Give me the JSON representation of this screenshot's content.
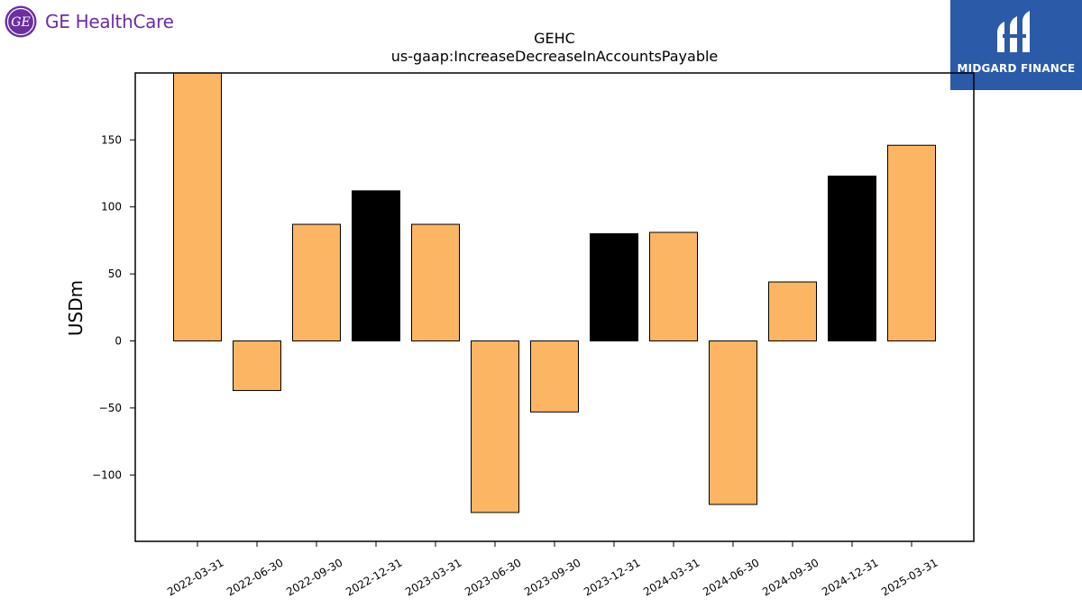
{
  "brand": {
    "left_logo_text": "GE HealthCare",
    "left_logo_mark": "GE",
    "right_logo_text": "MIDGARD FINANCE",
    "colors": {
      "ge_purple": "#6b2fa0",
      "midgard_blue": "#2a5aa8"
    }
  },
  "chart_data": {
    "type": "bar",
    "title": "GEHC",
    "subtitle": "us-gaap:IncreaseDecreaseInAccountsPayable",
    "xlabel": "",
    "ylabel": "USDm",
    "ylim": [
      -150,
      200
    ],
    "yticks": [
      -100,
      -50,
      0,
      50,
      100,
      150
    ],
    "ytick_labels": [
      "−100",
      "−50",
      "0",
      "50",
      "100",
      "150"
    ],
    "grid": false,
    "categories": [
      "2022-03-31",
      "2022-06-30",
      "2022-09-30",
      "2022-12-31",
      "2023-03-31",
      "2023-06-30",
      "2023-09-30",
      "2023-12-31",
      "2024-03-31",
      "2024-06-30",
      "2024-09-30",
      "2024-12-31",
      "2025-03-31"
    ],
    "values": [
      200,
      -37,
      87,
      112,
      87,
      -128,
      -53,
      80,
      81,
      -122,
      44,
      123,
      146
    ],
    "bar_colors": [
      "#fbb563",
      "#fbb563",
      "#fbb563",
      "#000000",
      "#fbb563",
      "#fbb563",
      "#fbb563",
      "#000000",
      "#fbb563",
      "#fbb563",
      "#fbb563",
      "#000000",
      "#fbb563"
    ]
  }
}
